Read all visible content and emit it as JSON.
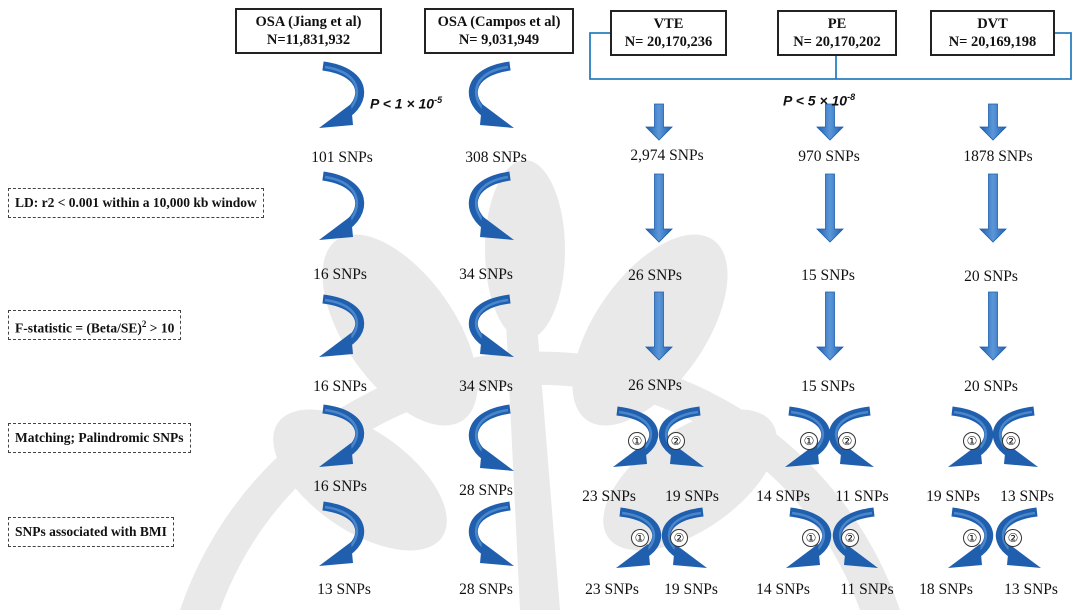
{
  "sources": [
    {
      "name": "OSA (Jiang et al)",
      "n": "N=11,831,932"
    },
    {
      "name": "OSA (Campos et al)",
      "n": "N= 9,031,949"
    },
    {
      "name": "VTE",
      "n": "N= 20,170,236"
    },
    {
      "name": "PE",
      "n": "N= 20,170,202"
    },
    {
      "name": "DVT",
      "n": "N= 20,169,198"
    }
  ],
  "thresholds": {
    "osa": {
      "text": "P < 1 × 10",
      "exp": "-5"
    },
    "vte": {
      "text": "P < 5 × 10",
      "exp": "-8"
    }
  },
  "filters": {
    "ld": "LD: r2 < 0.001 within a 10,000 kb window",
    "f_stat_prefix": "F-statistic = (Beta/SE)",
    "f_stat_sup": "2",
    "f_stat_suffix": " > 10",
    "matching": "Matching; Palindromic SNPs",
    "bmi": "SNPs associated with BMI"
  },
  "counts": {
    "row1": [
      "101 SNPs",
      "308 SNPs",
      "2,974 SNPs",
      "970 SNPs",
      "1878 SNPs"
    ],
    "row2": [
      "16 SNPs",
      "34 SNPs",
      "26 SNPs",
      "15 SNPs",
      "20 SNPs"
    ],
    "row3": [
      "16 SNPs",
      "34 SNPs",
      "26 SNPs",
      "15 SNPs",
      "20 SNPs"
    ],
    "row4": [
      "16 SNPs",
      "28 SNPs",
      "23 SNPs",
      "19 SNPs",
      "14 SNPs",
      "11 SNPs",
      "19 SNPs",
      "13 SNPs"
    ],
    "row5": [
      "13 SNPs",
      "28 SNPs",
      "23 SNPs",
      "19 SNPs",
      "14 SNPs",
      "11 SNPs",
      "18 SNPs",
      "13 SNPs"
    ]
  },
  "markers": [
    "①",
    "②"
  ],
  "colors": {
    "arrow": "#1f5fae",
    "arrow_light": "#5b97d8",
    "bracket": "#2a7fc0",
    "watermark": "#e8e8e8"
  }
}
